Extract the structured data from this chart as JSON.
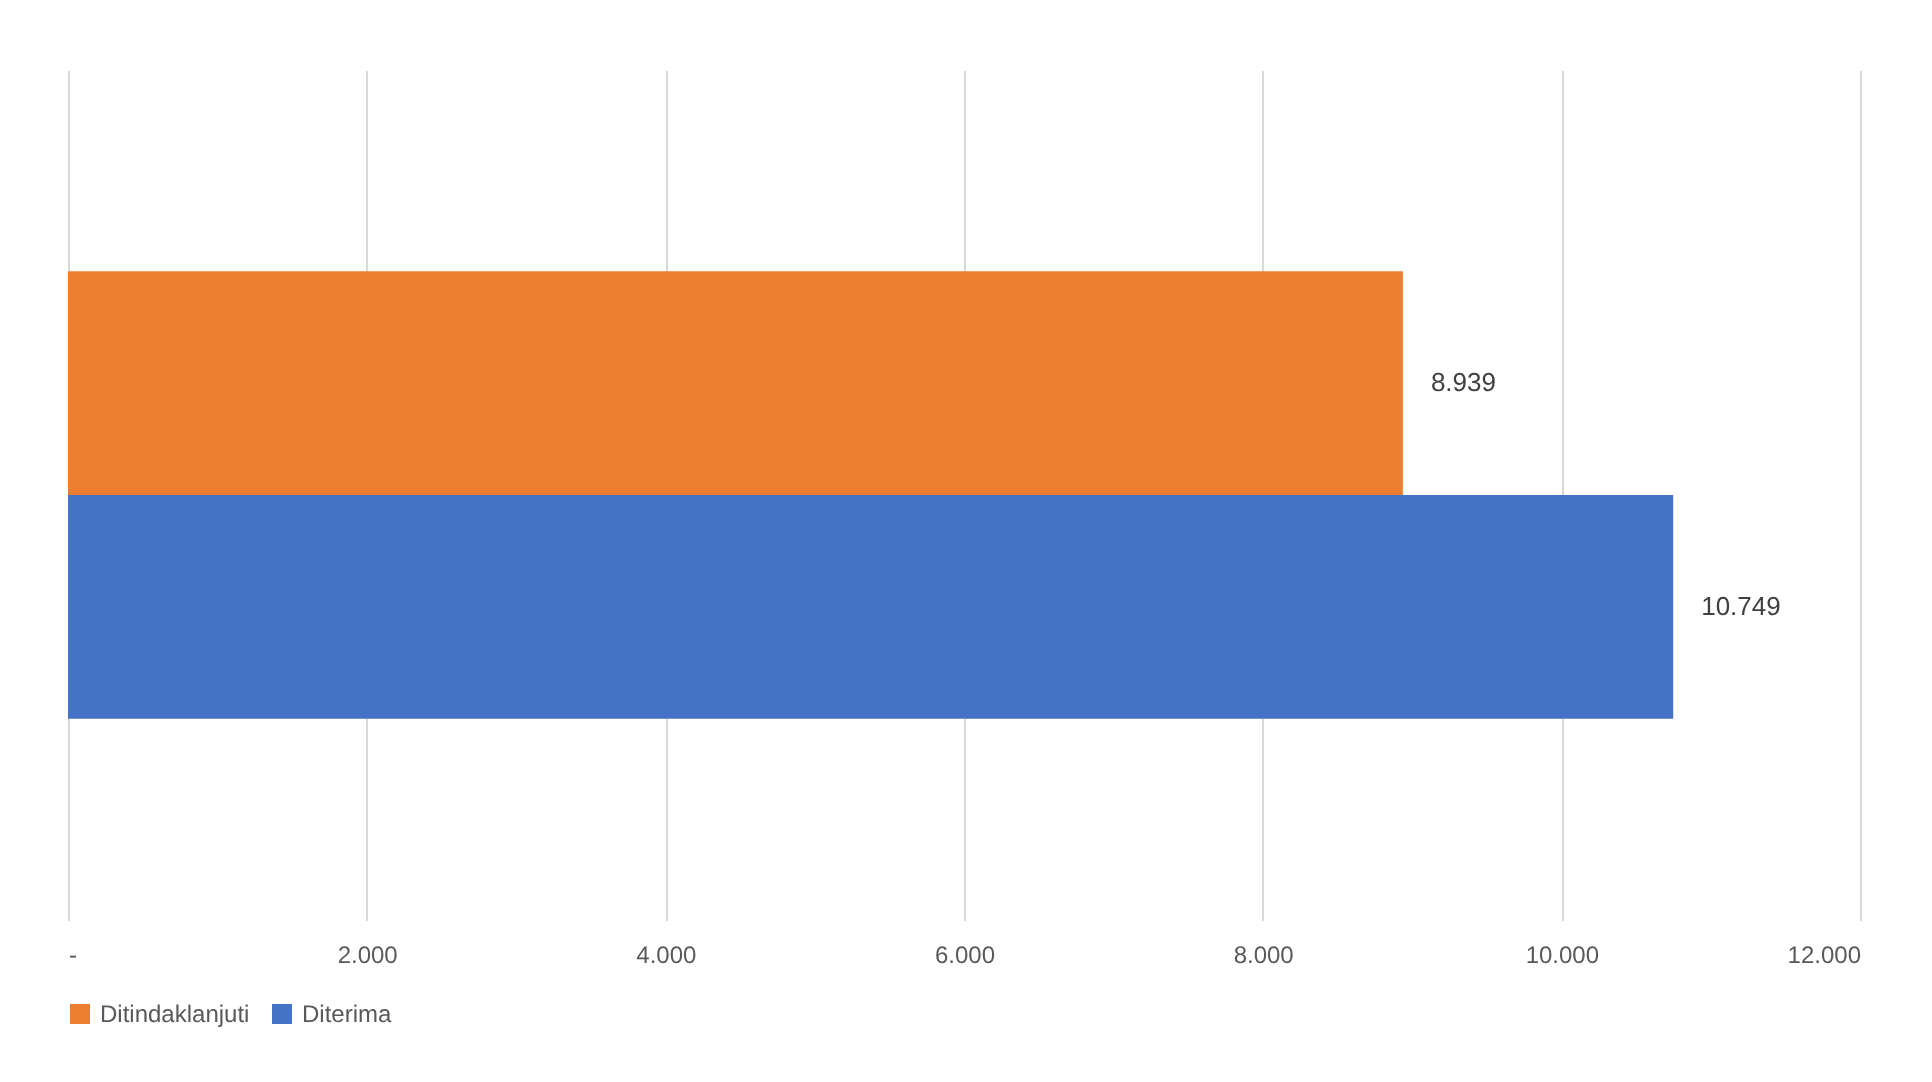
{
  "chart_data": {
    "type": "bar",
    "orientation": "horizontal",
    "categories": [
      null
    ],
    "series": [
      {
        "name": "Ditindaklanjuti",
        "color": "#ed7d31",
        "values": [
          8939
        ],
        "value_labels": [
          "8.939"
        ]
      },
      {
        "name": "Diterima",
        "color": "#4472c4",
        "values": [
          10749
        ],
        "value_labels": [
          "10.749"
        ]
      }
    ],
    "xlim": [
      0,
      12000
    ],
    "xticks": [
      {
        "value": 0,
        "label": "-"
      },
      {
        "value": 2000,
        "label": "2.000"
      },
      {
        "value": 4000,
        "label": "4.000"
      },
      {
        "value": 6000,
        "label": "6.000"
      },
      {
        "value": 8000,
        "label": "8.000"
      },
      {
        "value": 10000,
        "label": "10.000"
      },
      {
        "value": 12000,
        "label": "12.000"
      }
    ],
    "grid": "x",
    "legend": "bottom"
  }
}
